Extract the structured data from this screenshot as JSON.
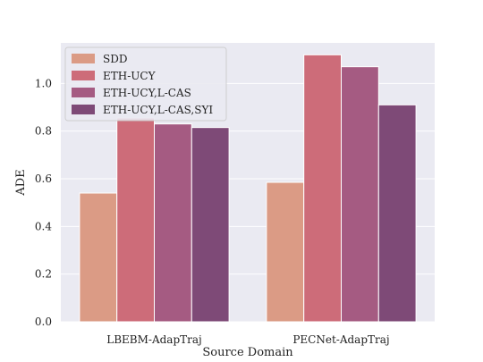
{
  "chart_data": {
    "type": "bar",
    "title": "",
    "xlabel": "Source Domain",
    "ylabel": "ADE",
    "categories": [
      "LBEBM-AdapTraj",
      "PECNet-AdapTraj"
    ],
    "series": [
      {
        "name": "SDD",
        "values": [
          0.54,
          0.585
        ],
        "color": "#db9b85"
      },
      {
        "name": "ETH-UCY",
        "values": [
          0.855,
          1.12
        ],
        "color": "#cd6c79"
      },
      {
        "name": "ETH-UCY,L-CAS",
        "values": [
          0.83,
          1.07
        ],
        "color": "#a55b82"
      },
      {
        "name": "ETH-UCY,L-CAS,SYI",
        "values": [
          0.815,
          0.91
        ],
        "color": "#7e4a77"
      }
    ],
    "ylim": [
      0,
      1.17
    ],
    "yticks": [
      "0.0",
      "0.2",
      "0.4",
      "0.6",
      "0.8",
      "1.0"
    ],
    "grid": true,
    "legend_position": "top-left",
    "colors": {
      "plot_background": "#eaeaf2",
      "grid": "#ffffff"
    }
  }
}
